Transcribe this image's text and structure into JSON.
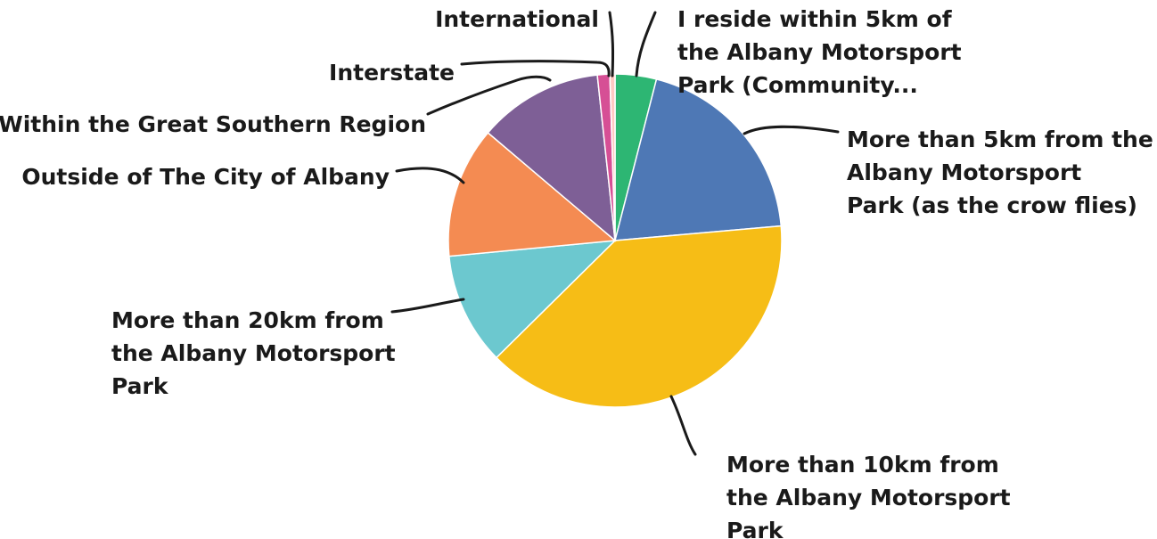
{
  "chart_data": {
    "type": "pie",
    "title": "",
    "slices": [
      {
        "label": [
          "I reside within 5km of",
          "the Albany Motorsport",
          "Park (Community..."
        ],
        "value": 4.0,
        "color": "#2db673"
      },
      {
        "label": [
          "More than 5km from the",
          "Albany Motorsport",
          "Park (as the crow flies)"
        ],
        "value": 19.6,
        "color": "#4e78b5"
      },
      {
        "label": [
          "More than 10km from",
          "the Albany Motorsport",
          "Park"
        ],
        "value": 39.0,
        "color": "#f6bd16"
      },
      {
        "label": [
          "More than 20km from",
          "the Albany Motorsport",
          "Park"
        ],
        "value": 10.9,
        "color": "#6cc8cf"
      },
      {
        "label": [
          "Outside of The City of Albany"
        ],
        "value": 12.7,
        "color": "#f48b52"
      },
      {
        "label": [
          "Within the Great Southern Region"
        ],
        "value": 12.1,
        "color": "#7e5f96"
      },
      {
        "label": [
          "Interstate"
        ],
        "value": 1.2,
        "color": "#d64f95"
      },
      {
        "label": [
          "International"
        ],
        "value": 0.5,
        "color": "#ffc9c2"
      }
    ]
  }
}
